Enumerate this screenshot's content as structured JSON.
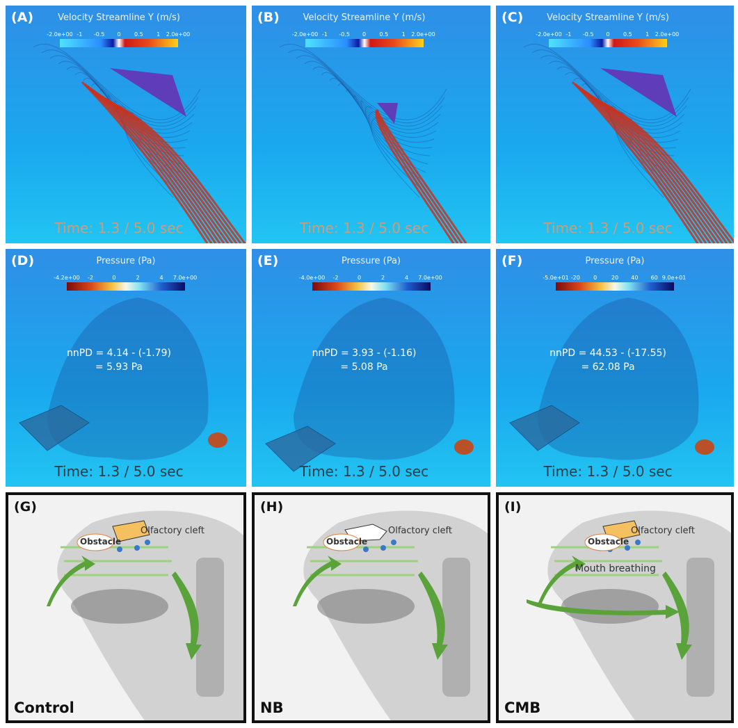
{
  "panels": [
    {
      "label": "(A)",
      "colorbar": {
        "title": "Velocity Streamline Y (m/s)",
        "ticks": [
          "-2.0e+00",
          "-1",
          "-0.5",
          "0",
          "0.5",
          "1",
          "2.0e+00"
        ]
      },
      "time": "Time: 1.3 / 5.0 sec"
    },
    {
      "label": "(B)",
      "colorbar": {
        "title": "Velocity Streamline Y (m/s)",
        "ticks": [
          "-2.0e+00",
          "-1",
          "-0.5",
          "0",
          "0.5",
          "1",
          "2.0e+00"
        ]
      },
      "time": "Time: 1.3 / 5.0 sec"
    },
    {
      "label": "(C)",
      "colorbar": {
        "title": "Velocity Streamline Y (m/s)",
        "ticks": [
          "-2.0e+00",
          "-1",
          "-0.5",
          "0",
          "0.5",
          "1",
          "2.0e+00"
        ]
      },
      "time": "Time: 1.3 / 5.0 sec"
    },
    {
      "label": "(D)",
      "colorbar": {
        "title": "Pressure (Pa)",
        "ticks": [
          "-4.2e+00",
          "-2",
          "0",
          "2",
          "4",
          "7.0e+00"
        ]
      },
      "annotation": [
        "nnPD = 4.14 - (-1.79)",
        "= 5.93 Pa"
      ],
      "time": "Time: 1.3 / 5.0 sec"
    },
    {
      "label": "(E)",
      "colorbar": {
        "title": "Pressure (Pa)",
        "ticks": [
          "-4.0e+00",
          "-2",
          "0",
          "2",
          "4",
          "7.0e+00"
        ]
      },
      "annotation": [
        "nnPD = 3.93 - (-1.16)",
        "= 5.08 Pa"
      ],
      "time": "Time: 1.3 / 5.0 sec"
    },
    {
      "label": "(F)",
      "colorbar": {
        "title": "Pressure (Pa)",
        "ticks": [
          "-5.0e+01",
          "-20",
          "0",
          "20",
          "40",
          "60",
          "9.0e+01"
        ]
      },
      "annotation": [
        "nnPD = 44.53 - (-17.55)",
        "= 62.08 Pa"
      ],
      "time": "Time: 1.3 / 5.0 sec"
    },
    {
      "label": "(G)",
      "region": "Olfactory cleft",
      "obstacle": "Obstacle",
      "caption": "Control"
    },
    {
      "label": "(H)",
      "region": "Olfactory cleft",
      "obstacle": "Obstacle",
      "caption": "NB"
    },
    {
      "label": "(I)",
      "region": "Olfactory cleft",
      "obstacle": "Obstacle",
      "mouth": "Mouth breathing",
      "caption": "CMB"
    }
  ]
}
